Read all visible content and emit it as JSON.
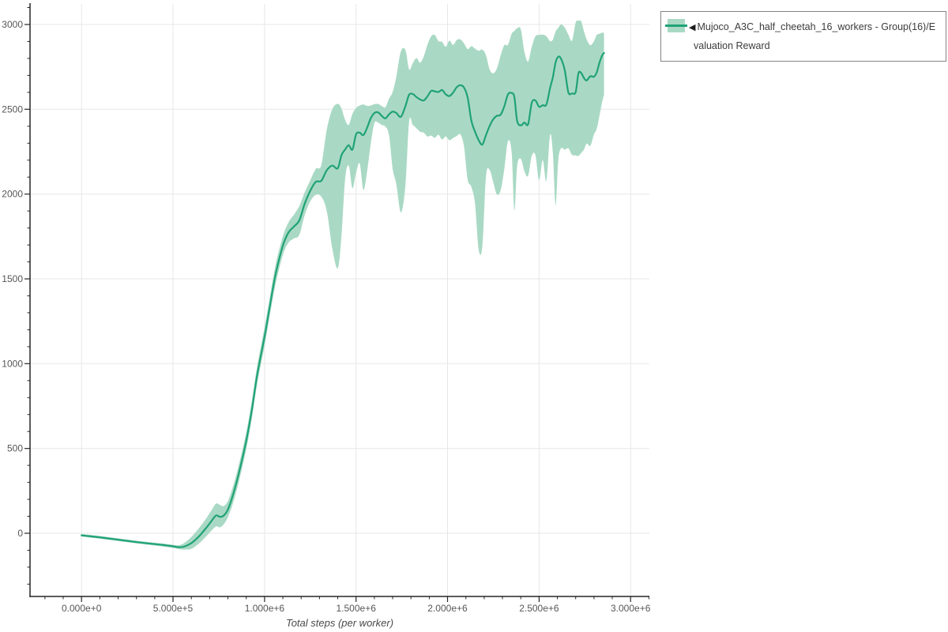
{
  "legend": {
    "collapse_glyph": "◀",
    "label": "Mujoco_A3C_half_cheetah_16_workers - Group(16)/Evaluation Reward"
  },
  "chart_data": {
    "type": "line",
    "title": "",
    "xlabel": "Total steps (per worker)",
    "ylabel": "",
    "grid": true,
    "legend_position": "outside-top-right",
    "xlim": [
      -280000,
      3103000
    ],
    "ylim": [
      -373,
      3121
    ],
    "x_ticks": {
      "values": [
        0,
        500000,
        1000000,
        1500000,
        2000000,
        2500000,
        3000000
      ],
      "labels": [
        "0.000e+0",
        "5.000e+5",
        "1.000e+6",
        "1.500e+6",
        "2.000e+6",
        "2.500e+6",
        "3.000e+6"
      ]
    },
    "y_ticks": {
      "values": [
        0,
        500,
        1000,
        1500,
        2000,
        2500,
        3000
      ],
      "labels": [
        "0",
        "500",
        "1000",
        "1500",
        "2000",
        "2500",
        "3000"
      ]
    },
    "x_minor_tick_step": 100000,
    "y_minor_tick_step": 100,
    "colors": {
      "line": "#20a277",
      "band": "#a9d9c4",
      "grid": "#e7e7e7",
      "axis": "#262626",
      "tick_label": "#565656",
      "axis_title": "#4a4a4a",
      "legend_border": "#848484",
      "legend_text": "#3c3c3c"
    },
    "series": [
      {
        "name": "Mujoco_A3C_half_cheetah_16_workers - Group(16)/Evaluation Reward",
        "x": [
          0,
          50000,
          100000,
          150000,
          200000,
          250000,
          300000,
          350000,
          400000,
          450000,
          500000,
          530000,
          560000,
          600000,
          640000,
          680000,
          710000,
          735000,
          755000,
          775000,
          800000,
          830000,
          860000,
          900000,
          930000,
          960000,
          1000000,
          1030000,
          1060000,
          1100000,
          1130000,
          1160000,
          1190000,
          1220000,
          1250000,
          1280000,
          1310000,
          1340000,
          1370000,
          1400000,
          1420000,
          1440000,
          1460000,
          1480000,
          1500000,
          1520000,
          1540000,
          1560000,
          1580000,
          1600000,
          1620000,
          1640000,
          1660000,
          1680000,
          1700000,
          1720000,
          1745000,
          1770000,
          1790000,
          1810000,
          1830000,
          1850000,
          1870000,
          1890000,
          1910000,
          1930000,
          1950000,
          1970000,
          1990000,
          2010000,
          2030000,
          2050000,
          2070000,
          2090000,
          2110000,
          2130000,
          2150000,
          2170000,
          2190000,
          2210000,
          2230000,
          2250000,
          2270000,
          2290000,
          2310000,
          2330000,
          2350000,
          2365000,
          2380000,
          2400000,
          2420000,
          2440000,
          2460000,
          2480000,
          2500000,
          2520000,
          2540000,
          2560000,
          2575000,
          2590000,
          2605000,
          2620000,
          2640000,
          2660000,
          2680000,
          2700000,
          2715000,
          2730000,
          2745000,
          2760000,
          2780000,
          2800000,
          2815000,
          2830000,
          2845000,
          2855000
        ],
        "mean": [
          -12,
          -18,
          -24,
          -31,
          -38,
          -45,
          -52,
          -58,
          -64,
          -70,
          -77,
          -82,
          -79,
          -58,
          -20,
          30,
          72,
          105,
          97,
          103,
          140,
          235,
          355,
          545,
          725,
          935,
          1160,
          1345,
          1525,
          1695,
          1772,
          1808,
          1845,
          1945,
          2020,
          2072,
          2078,
          2140,
          2168,
          2152,
          2228,
          2262,
          2288,
          2262,
          2352,
          2362,
          2348,
          2390,
          2446,
          2478,
          2482,
          2462,
          2446,
          2470,
          2486,
          2478,
          2456,
          2520,
          2586,
          2590,
          2572,
          2558,
          2552,
          2576,
          2608,
          2606,
          2602,
          2614,
          2588,
          2578,
          2598,
          2630,
          2642,
          2628,
          2568,
          2432,
          2368,
          2318,
          2292,
          2348,
          2402,
          2442,
          2462,
          2468,
          2518,
          2588,
          2596,
          2572,
          2432,
          2405,
          2422,
          2412,
          2538,
          2552,
          2515,
          2524,
          2528,
          2625,
          2688,
          2775,
          2810,
          2798,
          2732,
          2600,
          2594,
          2602,
          2712,
          2714,
          2685,
          2670,
          2695,
          2692,
          2718,
          2775,
          2818,
          2832
        ],
        "lo": [
          -20,
          -26,
          -32,
          -39,
          -46,
          -53,
          -60,
          -66,
          -72,
          -79,
          -86,
          -93,
          -96,
          -92,
          -62,
          -20,
          15,
          40,
          35,
          50,
          95,
          185,
          305,
          495,
          672,
          882,
          1105,
          1290,
          1468,
          1640,
          1712,
          1738,
          1760,
          1878,
          1958,
          1995,
          1985,
          1900,
          1680,
          1562,
          1750,
          2085,
          2168,
          2035,
          2125,
          2180,
          2025,
          2130,
          2292,
          2418,
          2422,
          2408,
          2398,
          2348,
          2150,
          2058,
          1892,
          2055,
          2428,
          2408,
          2388,
          2368,
          2362,
          2340,
          2345,
          2332,
          2350,
          2322,
          2340,
          2318,
          2330,
          2342,
          2352,
          2280,
          2085,
          2042,
          1945,
          1672,
          1695,
          2105,
          2142,
          2068,
          1998,
          2022,
          2148,
          2312,
          2248,
          1905,
          2165,
          2208,
          2135,
          2108,
          2225,
          2230,
          2082,
          2200,
          2078,
          2348,
          2245,
          1935,
          2200,
          2270,
          2262,
          2270,
          2232,
          2228,
          2225,
          2242,
          2262,
          2298,
          2285,
          2352,
          2385,
          2462,
          2545,
          2585
        ],
        "hi": [
          -4,
          -10,
          -16,
          -23,
          -30,
          -37,
          -44,
          -50,
          -56,
          -61,
          -68,
          -71,
          -58,
          -22,
          28,
          85,
          135,
          175,
          168,
          160,
          190,
          285,
          405,
          595,
          778,
          988,
          1215,
          1400,
          1582,
          1750,
          1832,
          1878,
          1930,
          2012,
          2082,
          2149,
          2171,
          2380,
          2500,
          2532,
          2505,
          2438,
          2408,
          2472,
          2508,
          2522,
          2528,
          2520,
          2522,
          2530,
          2532,
          2520,
          2512,
          2562,
          2602,
          2692,
          2842,
          2848,
          2735,
          2772,
          2802,
          2775,
          2812,
          2880,
          2930,
          2938,
          2902,
          2898,
          2868,
          2905,
          2880,
          2908,
          2912,
          2888,
          2855,
          2872,
          2858,
          2845,
          2852,
          2818,
          2735,
          2712,
          2742,
          2818,
          2878,
          2880,
          2945,
          2962,
          2978,
          2972,
          2838,
          2782,
          2868,
          2930,
          2938,
          2940,
          2930,
          2902,
          2910,
          2958,
          2980,
          3000,
          2982,
          2940,
          2905,
          3012,
          3022,
          3018,
          2962,
          2912,
          2878,
          2902,
          2938,
          2945,
          2952,
          2948
        ]
      }
    ]
  }
}
